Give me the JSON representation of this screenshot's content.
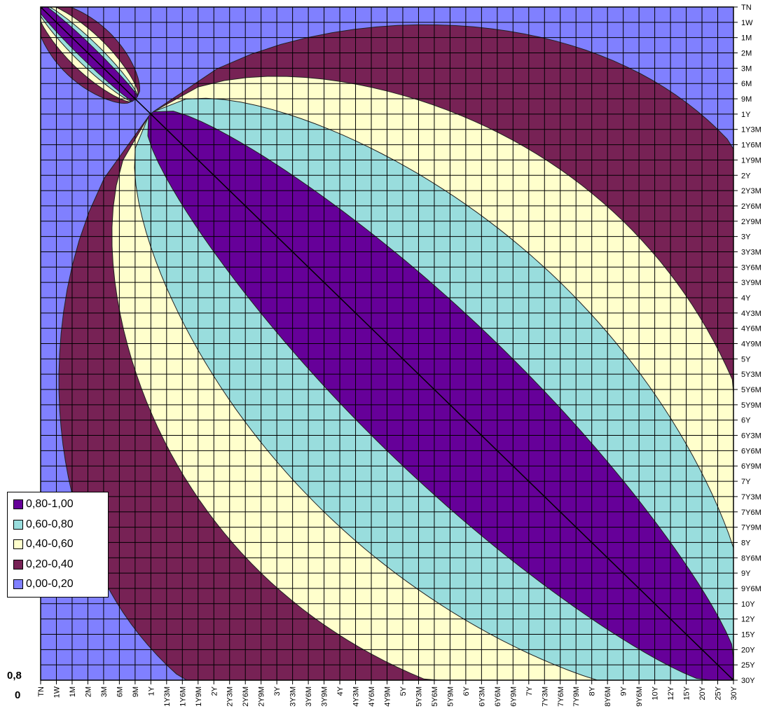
{
  "chart_data": {
    "type": "heatmap",
    "title": "",
    "xlabel": "",
    "ylabel": "",
    "tenors": [
      "TN",
      "1W",
      "1M",
      "2M",
      "3M",
      "6M",
      "9M",
      "1Y",
      "1Y3M",
      "1Y6M",
      "1Y9M",
      "2Y",
      "2Y3M",
      "2Y6M",
      "2Y9M",
      "3Y",
      "3Y3M",
      "3Y6M",
      "3Y9M",
      "4Y",
      "4Y3M",
      "4Y6M",
      "4Y9M",
      "5Y",
      "5Y3M",
      "5Y6M",
      "5Y9M",
      "6Y",
      "6Y3M",
      "6Y6M",
      "6Y9M",
      "7Y",
      "7Y3M",
      "7Y6M",
      "7Y9M",
      "8Y",
      "8Y6M",
      "9Y",
      "9Y6M",
      "10Y",
      "12Y",
      "15Y",
      "20Y",
      "25Y",
      "30Y"
    ],
    "legend": [
      {
        "label": "0,80-1,00",
        "color": "#660099"
      },
      {
        "label": "0,60-0,80",
        "color": "#99DDDD"
      },
      {
        "label": "0,40-0,60",
        "color": "#FFFFCC"
      },
      {
        "label": "0,20-0,40",
        "color": "#772255"
      },
      {
        "label": "0,00-0,20",
        "color": "#8080FF"
      }
    ],
    "legend_position": "bottom-left",
    "corner_labels": [
      "0,8",
      "0"
    ],
    "grid": true,
    "clusters": [
      {
        "from": "TN",
        "to": "9M",
        "widths": [
          0.35,
          0.55,
          0.85,
          1.35
        ],
        "comment": null
      },
      {
        "from": "1Y",
        "to": "30Y",
        "widths": [
          3.5,
          7.5,
          11.5,
          17.5
        ]
      }
    ]
  }
}
